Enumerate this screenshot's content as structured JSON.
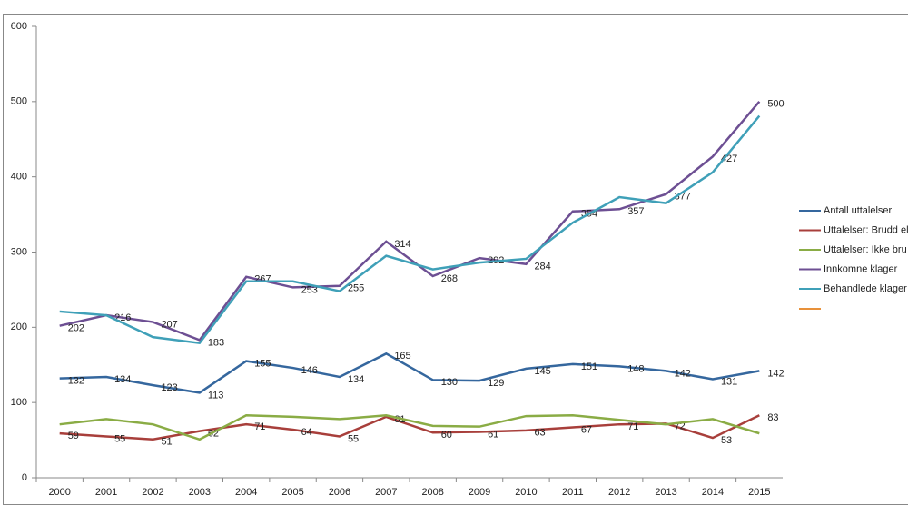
{
  "chart_data": {
    "type": "line",
    "categories": [
      "2000",
      "2001",
      "2002",
      "2003",
      "2004",
      "2005",
      "2006",
      "2007",
      "2008",
      "2009",
      "2010",
      "2011",
      "2012",
      "2013",
      "2014",
      "2015"
    ],
    "ylim": [
      0,
      600
    ],
    "yticks": [
      0,
      100,
      200,
      300,
      400,
      500,
      600
    ],
    "grid": false,
    "series": [
      {
        "name": "Antall uttalelser",
        "color": "#35679e",
        "show_labels": true,
        "values": [
          132,
          134,
          123,
          113,
          155,
          146,
          134,
          165,
          130,
          129,
          145,
          151,
          148,
          142,
          131,
          142
        ]
      },
      {
        "name": "Uttalelser: Brudd el",
        "color": "#a83f3b",
        "show_labels": true,
        "values": [
          59,
          55,
          51,
          62,
          71,
          64,
          55,
          81,
          60,
          61,
          63,
          67,
          71,
          72,
          53,
          83
        ]
      },
      {
        "name": "Uttalelser: Ikke bru",
        "color": "#8aac45",
        "show_labels": false,
        "values": [
          71,
          78,
          71,
          51,
          83,
          81,
          78,
          83,
          69,
          68,
          82,
          83,
          77,
          71,
          78,
          59
        ]
      },
      {
        "name": "Innkomne klager",
        "color": "#6d4f93",
        "show_labels": true,
        "values": [
          202,
          216,
          207,
          183,
          267,
          253,
          255,
          314,
          268,
          292,
          284,
          354,
          357,
          377,
          427,
          500
        ]
      },
      {
        "name": "Behandlede klager",
        "color": "#3fa0b8",
        "show_labels": false,
        "values": [
          221,
          216,
          187,
          179,
          261,
          261,
          248,
          295,
          277,
          286,
          291,
          339,
          373,
          365,
          406,
          481
        ]
      }
    ]
  }
}
